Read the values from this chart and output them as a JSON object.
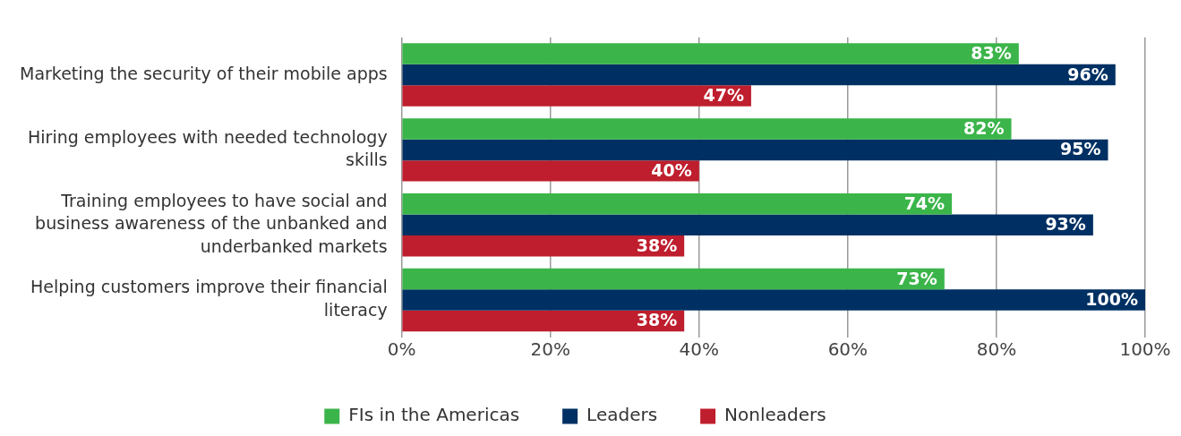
{
  "chart_data": {
    "type": "bar",
    "orientation": "horizontal",
    "categories": [
      "Marketing the security of their mobile apps",
      "Hiring employees with needed technology skills",
      "Training employees to have social and business awareness of the unbanked and underbanked markets",
      "Helping customers improve their financial literacy"
    ],
    "series": [
      {
        "name": "FIs in the Americas",
        "color": "#3bb54a",
        "values": [
          83,
          82,
          74,
          73
        ],
        "value_labels": [
          "83%",
          "82%",
          "74%",
          "73%"
        ]
      },
      {
        "name": "Leaders",
        "color": "#003063",
        "values": [
          96,
          95,
          93,
          100
        ],
        "value_labels": [
          "96%",
          "95%",
          "93%",
          "100%"
        ]
      },
      {
        "name": "Nonleaders",
        "color": "#be1e2d",
        "values": [
          47,
          40,
          38,
          38
        ],
        "value_labels": [
          "47%",
          "40%",
          "38%",
          "38%"
        ]
      }
    ],
    "xlim": [
      0,
      100
    ],
    "xticks": [
      {
        "value": 0,
        "label": "0%"
      },
      {
        "value": 20,
        "label": "20%"
      },
      {
        "value": 40,
        "label": "40%"
      },
      {
        "value": 60,
        "label": "60%"
      },
      {
        "value": 80,
        "label": "80%"
      },
      {
        "value": 100,
        "label": "100%"
      }
    ],
    "grid": "x",
    "legend": "bottom"
  }
}
